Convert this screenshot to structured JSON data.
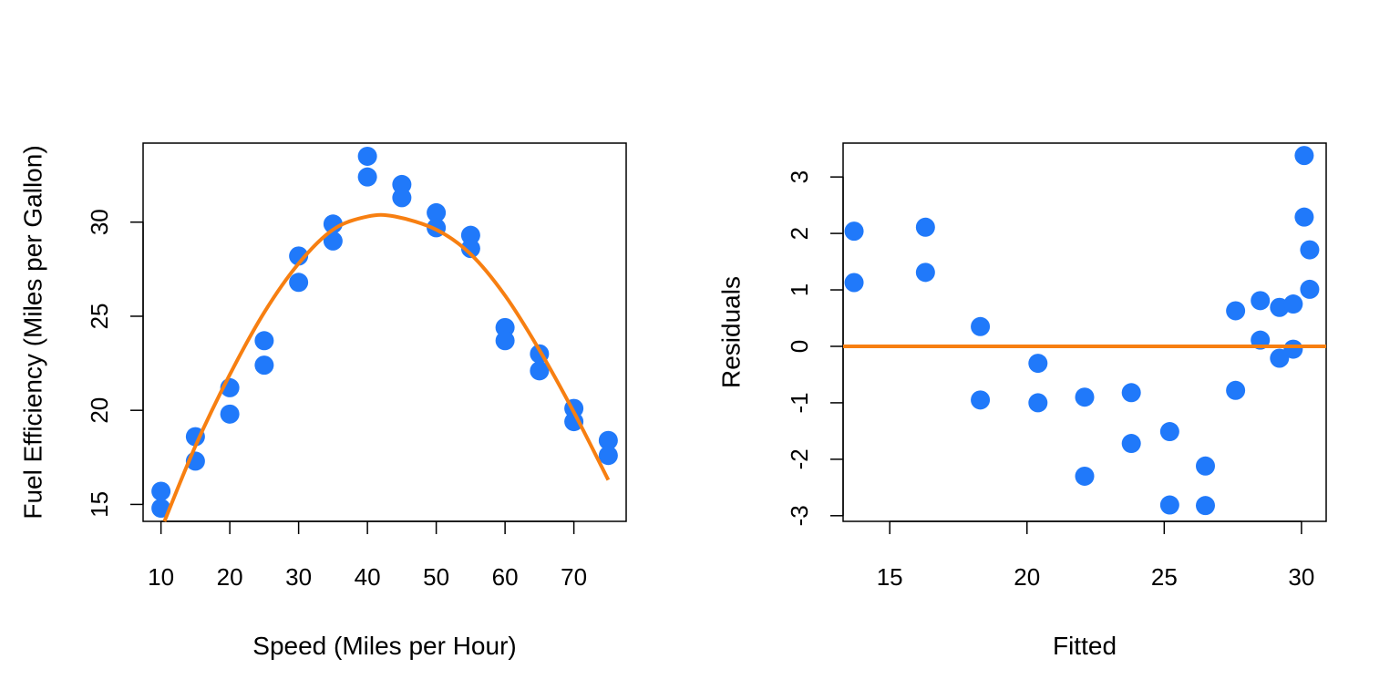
{
  "colors": {
    "points": "#2079FA",
    "fit": "#F77F11",
    "axes": "#000000"
  },
  "chart_data": [
    {
      "type": "scatter",
      "title": "",
      "xlabel": "Speed (Miles per Hour)",
      "ylabel": "Fuel Efficiency (Miles per Gallon)",
      "xlim": [
        7.4,
        77.6
      ],
      "ylim": [
        14.1,
        34.2
      ],
      "x_ticks": [
        10,
        20,
        30,
        40,
        50,
        60,
        70
      ],
      "y_ticks": [
        15,
        20,
        25,
        30
      ],
      "grid": false,
      "points": [
        {
          "x": 10,
          "y": 15.7
        },
        {
          "x": 10,
          "y": 14.8
        },
        {
          "x": 15,
          "y": 18.6
        },
        {
          "x": 15,
          "y": 17.3
        },
        {
          "x": 20,
          "y": 21.2
        },
        {
          "x": 20,
          "y": 19.8
        },
        {
          "x": 25,
          "y": 23.7
        },
        {
          "x": 25,
          "y": 22.4
        },
        {
          "x": 30,
          "y": 28.2
        },
        {
          "x": 30,
          "y": 26.8
        },
        {
          "x": 35,
          "y": 29.9
        },
        {
          "x": 35,
          "y": 29.0
        },
        {
          "x": 40,
          "y": 33.5
        },
        {
          "x": 40,
          "y": 32.4
        },
        {
          "x": 45,
          "y": 32.0
        },
        {
          "x": 45,
          "y": 31.3
        },
        {
          "x": 50,
          "y": 30.5
        },
        {
          "x": 50,
          "y": 29.7
        },
        {
          "x": 55,
          "y": 29.3
        },
        {
          "x": 55,
          "y": 28.6
        },
        {
          "x": 60,
          "y": 24.4
        },
        {
          "x": 60,
          "y": 23.7
        },
        {
          "x": 65,
          "y": 23.0
        },
        {
          "x": 65,
          "y": 22.1
        },
        {
          "x": 70,
          "y": 20.1
        },
        {
          "x": 70,
          "y": 19.4
        },
        {
          "x": 75,
          "y": 18.4
        },
        {
          "x": 75,
          "y": 17.6
        }
      ],
      "fit_curve": {
        "type": "quadratic",
        "points": [
          {
            "x": 10.5,
            "y": 14.1
          },
          {
            "x": 15,
            "y": 18.1
          },
          {
            "x": 20,
            "y": 21.9
          },
          {
            "x": 25,
            "y": 25.2
          },
          {
            "x": 30,
            "y": 27.8
          },
          {
            "x": 35,
            "y": 29.6
          },
          {
            "x": 40,
            "y": 30.3
          },
          {
            "x": 44,
            "y": 30.3
          },
          {
            "x": 50,
            "y": 29.6
          },
          {
            "x": 55,
            "y": 28.3
          },
          {
            "x": 60,
            "y": 26.1
          },
          {
            "x": 65,
            "y": 23.2
          },
          {
            "x": 70,
            "y": 19.9
          },
          {
            "x": 75,
            "y": 16.3
          }
        ]
      }
    },
    {
      "type": "scatter",
      "title": "",
      "xlabel": "Fitted",
      "ylabel": "Residuals",
      "xlim": [
        13.3,
        30.9
      ],
      "ylim": [
        -3.1,
        3.6
      ],
      "x_ticks": [
        15,
        20,
        25,
        30
      ],
      "y_ticks": [
        -3,
        -2,
        -1,
        0,
        1,
        2,
        3
      ],
      "grid": false,
      "points": [
        {
          "x": 13.7,
          "y": 2.04
        },
        {
          "x": 13.7,
          "y": 1.13
        },
        {
          "x": 16.3,
          "y": 2.11
        },
        {
          "x": 16.3,
          "y": 1.31
        },
        {
          "x": 18.3,
          "y": 0.35
        },
        {
          "x": 18.3,
          "y": -0.95
        },
        {
          "x": 20.4,
          "y": -0.3
        },
        {
          "x": 20.4,
          "y": -1.0
        },
        {
          "x": 22.1,
          "y": -0.9
        },
        {
          "x": 22.1,
          "y": -2.3
        },
        {
          "x": 23.8,
          "y": -0.82
        },
        {
          "x": 23.8,
          "y": -1.72
        },
        {
          "x": 25.2,
          "y": -1.51
        },
        {
          "x": 25.2,
          "y": -2.81
        },
        {
          "x": 26.5,
          "y": -2.12
        },
        {
          "x": 26.5,
          "y": -2.82
        },
        {
          "x": 27.6,
          "y": 0.63
        },
        {
          "x": 27.6,
          "y": -0.78
        },
        {
          "x": 28.5,
          "y": 0.81
        },
        {
          "x": 28.5,
          "y": 0.11
        },
        {
          "x": 29.2,
          "y": 0.69
        },
        {
          "x": 29.2,
          "y": -0.21
        },
        {
          "x": 29.7,
          "y": 0.75
        },
        {
          "x": 29.7,
          "y": -0.05
        },
        {
          "x": 30.1,
          "y": 3.38
        },
        {
          "x": 30.1,
          "y": 2.29
        },
        {
          "x": 30.3,
          "y": 1.71
        },
        {
          "x": 30.3,
          "y": 1.01
        }
      ],
      "reference_line": {
        "y": 0
      }
    }
  ]
}
